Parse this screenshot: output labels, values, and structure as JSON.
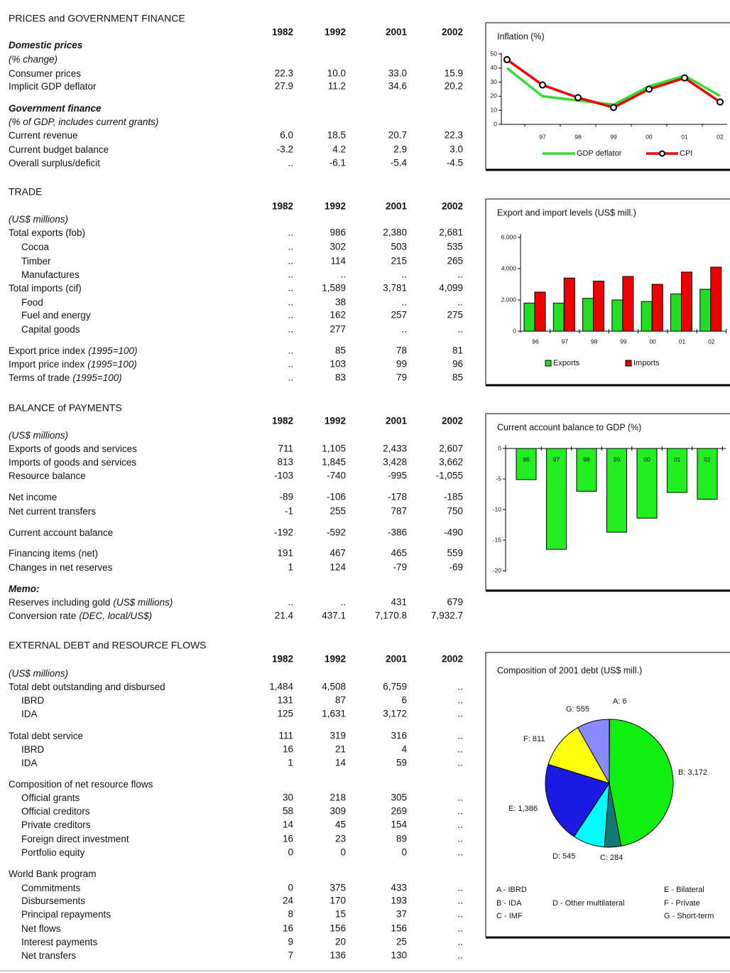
{
  "sections": [
    {
      "title": "PRICES and GOVERNMENT FINANCE",
      "years": [
        "1982",
        "1992",
        "2001",
        "2002"
      ],
      "rows": [
        {
          "label": "Domestic prices"
        },
        {
          "label": "(% change)"
        },
        {
          "label": "Consumer prices",
          "values": [
            "22.3",
            "10.0",
            "33.0",
            "15.9"
          ]
        },
        {
          "label": "Implicit GDP deflator",
          "values": [
            "27.9",
            "11.2",
            "34.6",
            "20.2"
          ]
        },
        {
          "label": "Government finance"
        },
        {
          "label": "(% of GDP, includes current grants)"
        },
        {
          "label": "Current revenue",
          "values": [
            "6.0",
            "18.5",
            "20.7",
            "22.3"
          ]
        },
        {
          "label": "Current budget balance",
          "values": [
            "-3.2",
            "4.2",
            "2.9",
            "3.0"
          ]
        },
        {
          "label": "Overall surplus/deficit",
          "values": [
            "..",
            "-6.1",
            "-5.4",
            "-4.5"
          ]
        }
      ]
    },
    {
      "title": "TRADE",
      "years": [
        "1982",
        "1992",
        "2001",
        "2002"
      ],
      "rows": [
        {
          "label": "(US$ millions)"
        },
        {
          "label": "Total exports (fob)",
          "values": [
            "..",
            "986",
            "2,380",
            "2,681"
          ]
        },
        {
          "label": "Cocoa",
          "values": [
            "..",
            "302",
            "503",
            "535"
          ]
        },
        {
          "label": "Timber",
          "values": [
            "..",
            "114",
            "215",
            "265"
          ]
        },
        {
          "label": "Manufactures",
          "values": [
            "..",
            "..",
            "..",
            ".."
          ]
        },
        {
          "label": "Total imports (cif)",
          "values": [
            "..",
            "1,589",
            "3,781",
            "4,099"
          ]
        },
        {
          "label": "Food",
          "values": [
            "..",
            "38",
            "..",
            ".."
          ]
        },
        {
          "label": "Fuel and energy",
          "values": [
            "..",
            "162",
            "257",
            "275"
          ]
        },
        {
          "label": "Capital goods",
          "values": [
            "..",
            "277",
            "..",
            ".."
          ]
        },
        {
          "label": "Export price index",
          "note": "(1995=100)",
          "values": [
            "..",
            "85",
            "78",
            "81"
          ]
        },
        {
          "label": "Import price index",
          "note": "(1995=100)",
          "values": [
            "..",
            "103",
            "99",
            "96"
          ]
        },
        {
          "label": "Terms of trade",
          "note": "(1995=100)",
          "values": [
            "..",
            "83",
            "79",
            "85"
          ]
        }
      ]
    },
    {
      "title": "BALANCE of PAYMENTS",
      "years": [
        "1982",
        "1992",
        "2001",
        "2002"
      ],
      "rows": [
        {
          "label": "(US$ millions)"
        },
        {
          "label": "Exports of goods and services",
          "values": [
            "711",
            "1,105",
            "2,433",
            "2,607"
          ]
        },
        {
          "label": "Imports of goods and services",
          "values": [
            "813",
            "1,845",
            "3,428",
            "3,662"
          ]
        },
        {
          "label": "Resource balance",
          "values": [
            "-103",
            "-740",
            "-995",
            "-1,055"
          ]
        },
        {
          "label": "Net income",
          "values": [
            "-89",
            "-106",
            "-178",
            "-185"
          ]
        },
        {
          "label": "Net current transfers",
          "values": [
            "-1",
            "255",
            "787",
            "750"
          ]
        },
        {
          "label": "Current account balance",
          "values": [
            "-192",
            "-592",
            "-386",
            "-490"
          ]
        },
        {
          "label": "Financing items (net)",
          "values": [
            "191",
            "467",
            "465",
            "559"
          ]
        },
        {
          "label": "Changes in net reserves",
          "values": [
            "1",
            "124",
            "-79",
            "-69"
          ]
        },
        {
          "label": "Memo:"
        },
        {
          "label": "Reserves including gold",
          "note": "(US$ millions)",
          "values": [
            "..",
            "..",
            "431",
            "679"
          ]
        },
        {
          "label": "Conversion rate",
          "note": "(DEC, local/US$)",
          "values": [
            "21.4",
            "437.1",
            "7,170.8",
            "7,932.7"
          ]
        }
      ]
    },
    {
      "title": "EXTERNAL DEBT and RESOURCE FLOWS",
      "years": [
        "1982",
        "1992",
        "2001",
        "2002"
      ],
      "rows": [
        {
          "label": "(US$ millions)"
        },
        {
          "label": "Total debt outstanding and disbursed",
          "values": [
            "1,484",
            "4,508",
            "6,759",
            ".."
          ]
        },
        {
          "label": "IBRD",
          "values": [
            "131",
            "87",
            "6",
            ".."
          ]
        },
        {
          "label": "IDA",
          "values": [
            "125",
            "1,631",
            "3,172",
            ".."
          ]
        },
        {
          "label": "Total debt service",
          "values": [
            "111",
            "319",
            "316",
            ".."
          ]
        },
        {
          "label": "IBRD",
          "values": [
            "16",
            "21",
            "4",
            ".."
          ]
        },
        {
          "label": "IDA",
          "values": [
            "1",
            "14",
            "59",
            ".."
          ]
        },
        {
          "label": "Composition of net resource flows"
        },
        {
          "label": "Official grants",
          "values": [
            "30",
            "218",
            "305",
            ".."
          ]
        },
        {
          "label": "Official creditors",
          "values": [
            "58",
            "309",
            "269",
            ".."
          ]
        },
        {
          "label": "Private creditors",
          "values": [
            "14",
            "45",
            "154",
            ".."
          ]
        },
        {
          "label": "Foreign direct investment",
          "values": [
            "16",
            "23",
            "89",
            ".."
          ]
        },
        {
          "label": "Portfolio equity",
          "values": [
            "0",
            "0",
            "0",
            ".."
          ]
        },
        {
          "label": "World Bank program"
        },
        {
          "label": "Commitments",
          "values": [
            "0",
            "375",
            "433",
            ".."
          ]
        },
        {
          "label": "Disbursements",
          "values": [
            "24",
            "170",
            "193",
            ".."
          ]
        },
        {
          "label": "Principal repayments",
          "values": [
            "8",
            "15",
            "37",
            ".."
          ]
        },
        {
          "label": "Net flows",
          "values": [
            "16",
            "156",
            "156",
            ".."
          ]
        },
        {
          "label": "Interest payments",
          "values": [
            "9",
            "20",
            "25",
            ".."
          ]
        },
        {
          "label": "Net transfers",
          "values": [
            "7",
            "136",
            "130",
            ".."
          ]
        }
      ]
    }
  ],
  "chart_data": [
    {
      "type": "line",
      "title": "Inflation (%)",
      "categories": [
        null,
        "97",
        "98",
        "99",
        "00",
        "01",
        "02"
      ],
      "series": [
        {
          "name": "GDP deflator",
          "color": "#33dd33",
          "values": [
            40,
            20,
            17,
            14,
            27,
            34.6,
            20.2
          ]
        },
        {
          "name": "CPI",
          "color": "#ee0000",
          "marker": "circle",
          "values": [
            46,
            28,
            19,
            12,
            25,
            33.0,
            15.9
          ]
        }
      ],
      "ylim": [
        0,
        50
      ],
      "yticks": [
        0,
        10,
        20,
        30,
        40,
        50
      ]
    },
    {
      "type": "bar",
      "title": "Export and import levels (US$ mill.)",
      "categories": [
        "96",
        "97",
        "98",
        "99",
        "00",
        "01",
        "02"
      ],
      "series": [
        {
          "name": "Exports",
          "color": "#22dd22",
          "values": [
            1800,
            1800,
            2100,
            2000,
            1900,
            2380,
            2681
          ]
        },
        {
          "name": "Imports",
          "color": "#ee0000",
          "values": [
            2500,
            3400,
            3200,
            3500,
            3000,
            3781,
            4099
          ]
        }
      ],
      "ylim": [
        0,
        6000
      ],
      "yticks": [
        0,
        {
          "value": 2000,
          "label": "2,000"
        },
        {
          "value": 4000,
          "label": "4,000"
        },
        {
          "value": 6000,
          "label": "6,000"
        }
      ]
    },
    {
      "type": "bar",
      "title": "Current account balance to GDP (%)",
      "categories": [
        "96",
        "97",
        "98",
        "99",
        "00",
        "01",
        "02"
      ],
      "values": [
        -5.1,
        -16.5,
        -7.0,
        -13.7,
        -11.4,
        -7.2,
        -8.3
      ],
      "color": "#22ee22",
      "ylim": [
        -20,
        0
      ],
      "yticks": [
        0,
        -5,
        -10,
        -15,
        -20
      ]
    },
    {
      "type": "pie",
      "title": "Composition of 2001 debt (US$ mill.)",
      "categories": [
        "A",
        "B",
        "C",
        "D",
        "E",
        "F",
        "G"
      ],
      "values": [
        6,
        3172,
        284,
        545,
        1386,
        811,
        555
      ],
      "value_labels": [
        "A: 6",
        "B: 3,172",
        "C: 284",
        "D: 545",
        "E: 1,386",
        "F: 811",
        "G: 555"
      ],
      "colors": [
        "#c8c8ff",
        "#11ee11",
        "#117777",
        "#00ffff",
        "#1a1ae0",
        "#ffff11",
        "#8a8aff"
      ],
      "legend": [
        "A - IBRD",
        "B - IDA",
        "C - IMF",
        "D - Other multilateral",
        "E - Bilateral",
        "F - Private",
        "G - Short-term"
      ]
    }
  ]
}
